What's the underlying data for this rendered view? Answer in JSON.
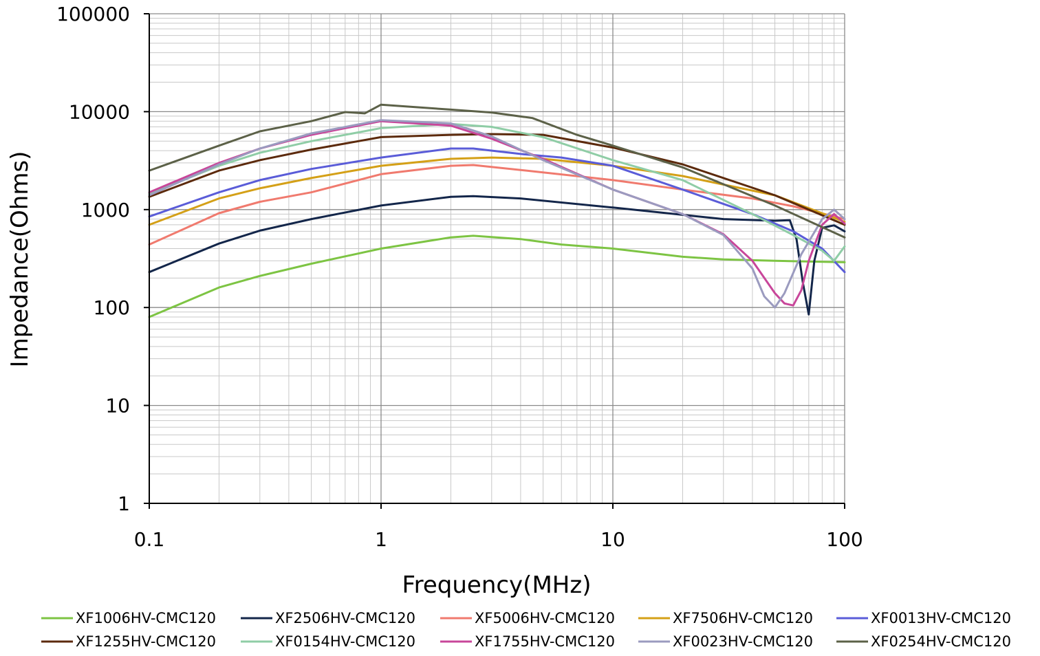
{
  "chart_data": {
    "type": "line",
    "title": "",
    "xlabel": "Frequency(MHz)",
    "ylabel": "Impedance(Ohms)",
    "x_scale": "log",
    "y_scale": "log",
    "xlim": [
      0.1,
      100
    ],
    "ylim": [
      1,
      100000
    ],
    "x_ticks": [
      "0.1",
      "1",
      "10",
      "100"
    ],
    "y_ticks": [
      "1",
      "10",
      "100",
      "1000",
      "10000",
      "100000"
    ],
    "grid": true,
    "legend_position": "bottom",
    "series": [
      {
        "name": "XF1006HV-CMC120",
        "color": "#7dc443",
        "points": [
          [
            0.1,
            80
          ],
          [
            0.2,
            160
          ],
          [
            0.3,
            210
          ],
          [
            0.5,
            280
          ],
          [
            1,
            400
          ],
          [
            2,
            520
          ],
          [
            2.5,
            540
          ],
          [
            4,
            500
          ],
          [
            6,
            440
          ],
          [
            10,
            400
          ],
          [
            20,
            330
          ],
          [
            30,
            310
          ],
          [
            50,
            300
          ],
          [
            100,
            290
          ]
        ]
      },
      {
        "name": "XF2506HV-CMC120",
        "color": "#13264a",
        "points": [
          [
            0.1,
            230
          ],
          [
            0.2,
            450
          ],
          [
            0.3,
            610
          ],
          [
            0.5,
            800
          ],
          [
            1,
            1100
          ],
          [
            2,
            1350
          ],
          [
            2.5,
            1370
          ],
          [
            4,
            1300
          ],
          [
            10,
            1050
          ],
          [
            30,
            800
          ],
          [
            50,
            770
          ],
          [
            58,
            780
          ],
          [
            62,
            500
          ],
          [
            66,
            180
          ],
          [
            70,
            85
          ],
          [
            74,
            300
          ],
          [
            80,
            650
          ],
          [
            90,
            690
          ],
          [
            100,
            600
          ]
        ]
      },
      {
        "name": "XF5006HV-CMC120",
        "color": "#f07a6e",
        "points": [
          [
            0.1,
            440
          ],
          [
            0.2,
            920
          ],
          [
            0.3,
            1200
          ],
          [
            0.5,
            1500
          ],
          [
            1,
            2300
          ],
          [
            2,
            2800
          ],
          [
            2.5,
            2850
          ],
          [
            5,
            2400
          ],
          [
            10,
            2000
          ],
          [
            20,
            1600
          ],
          [
            40,
            1300
          ],
          [
            60,
            1080
          ],
          [
            100,
            800
          ]
        ]
      },
      {
        "name": "XF7506HV-CMC120",
        "color": "#d4a017",
        "points": [
          [
            0.1,
            700
          ],
          [
            0.2,
            1300
          ],
          [
            0.3,
            1650
          ],
          [
            0.5,
            2100
          ],
          [
            1,
            2800
          ],
          [
            2,
            3300
          ],
          [
            3,
            3400
          ],
          [
            5,
            3300
          ],
          [
            10,
            2800
          ],
          [
            20,
            2200
          ],
          [
            50,
            1400
          ],
          [
            100,
            750
          ]
        ]
      },
      {
        "name": "XF0013HV-CMC120",
        "color": "#5a5cd8",
        "points": [
          [
            0.1,
            850
          ],
          [
            0.2,
            1500
          ],
          [
            0.3,
            2000
          ],
          [
            0.5,
            2600
          ],
          [
            1,
            3400
          ],
          [
            2,
            4200
          ],
          [
            2.5,
            4200
          ],
          [
            4,
            3700
          ],
          [
            6,
            3400
          ],
          [
            10,
            2800
          ],
          [
            20,
            1600
          ],
          [
            40,
            900
          ],
          [
            60,
            600
          ],
          [
            80,
            400
          ],
          [
            100,
            230
          ]
        ]
      },
      {
        "name": "XF1255HV-CMC120",
        "color": "#5c2a0c",
        "points": [
          [
            0.1,
            1350
          ],
          [
            0.2,
            2500
          ],
          [
            0.3,
            3200
          ],
          [
            0.5,
            4100
          ],
          [
            1,
            5500
          ],
          [
            2,
            5800
          ],
          [
            3,
            5900
          ],
          [
            5,
            5800
          ],
          [
            10,
            4300
          ],
          [
            20,
            2900
          ],
          [
            50,
            1400
          ],
          [
            100,
            700
          ]
        ]
      },
      {
        "name": "XF0154HV-CMC120",
        "color": "#8fcda6",
        "points": [
          [
            0.1,
            1450
          ],
          [
            0.2,
            2800
          ],
          [
            0.3,
            3800
          ],
          [
            0.5,
            5000
          ],
          [
            1,
            6800
          ],
          [
            2,
            7500
          ],
          [
            3,
            7000
          ],
          [
            5,
            5500
          ],
          [
            10,
            3200
          ],
          [
            20,
            2000
          ],
          [
            40,
            900
          ],
          [
            60,
            550
          ],
          [
            80,
            380
          ],
          [
            90,
            300
          ],
          [
            100,
            420
          ]
        ]
      },
      {
        "name": "XF1755HV-CMC120",
        "color": "#c8469a",
        "points": [
          [
            0.1,
            1500
          ],
          [
            0.2,
            3000
          ],
          [
            0.3,
            4200
          ],
          [
            0.5,
            5800
          ],
          [
            1,
            8000
          ],
          [
            2,
            7200
          ],
          [
            3,
            5300
          ],
          [
            5,
            3300
          ],
          [
            10,
            1600
          ],
          [
            20,
            900
          ],
          [
            30,
            560
          ],
          [
            40,
            300
          ],
          [
            50,
            140
          ],
          [
            55,
            110
          ],
          [
            60,
            105
          ],
          [
            65,
            150
          ],
          [
            70,
            300
          ],
          [
            80,
            700
          ],
          [
            90,
            900
          ],
          [
            100,
            720
          ]
        ]
      },
      {
        "name": "XF0023HV-CMC120",
        "color": "#9b9bbf",
        "points": [
          [
            0.1,
            1400
          ],
          [
            0.2,
            2900
          ],
          [
            0.3,
            4200
          ],
          [
            0.5,
            6000
          ],
          [
            1,
            8200
          ],
          [
            2,
            7600
          ],
          [
            3,
            5600
          ],
          [
            5,
            3200
          ],
          [
            10,
            1600
          ],
          [
            20,
            900
          ],
          [
            30,
            550
          ],
          [
            40,
            250
          ],
          [
            45,
            130
          ],
          [
            50,
            100
          ],
          [
            55,
            140
          ],
          [
            65,
            350
          ],
          [
            80,
            800
          ],
          [
            90,
            1000
          ],
          [
            100,
            800
          ]
        ]
      },
      {
        "name": "XF0254HV-CMC120",
        "color": "#5c6148",
        "points": [
          [
            0.1,
            2500
          ],
          [
            0.2,
            4500
          ],
          [
            0.3,
            6300
          ],
          [
            0.5,
            8000
          ],
          [
            0.7,
            9900
          ],
          [
            0.85,
            9600
          ],
          [
            1,
            11800
          ],
          [
            2,
            10500
          ],
          [
            3,
            9800
          ],
          [
            4.5,
            8600
          ],
          [
            7,
            5800
          ],
          [
            10,
            4500
          ],
          [
            20,
            2700
          ],
          [
            50,
            1100
          ],
          [
            100,
            520
          ]
        ]
      }
    ]
  }
}
